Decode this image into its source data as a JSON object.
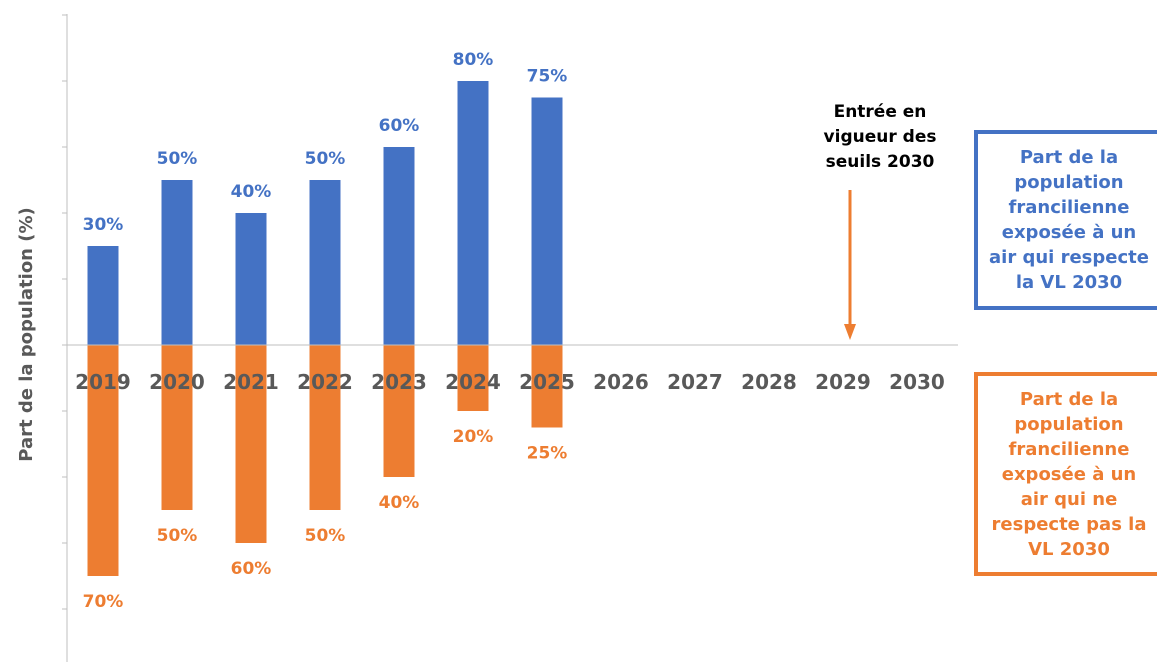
{
  "colors": {
    "blue": "#4472C4",
    "orange": "#ED7D31",
    "axis_text": "#595959",
    "axis_line": "#BFBFBF",
    "annotation": "#000000"
  },
  "chart_data": {
    "type": "bar",
    "ylabel": "Part de la population (%)",
    "xlabel": "",
    "categories": [
      "2019",
      "2020",
      "2021",
      "2022",
      "2023",
      "2024",
      "2025",
      "2026",
      "2027",
      "2028",
      "2029",
      "2030"
    ],
    "series": [
      {
        "name": "Part de la population francilienne exposée à un air qui respecte la VL 2030",
        "direction": "up",
        "color": "blue",
        "values": [
          30,
          50,
          40,
          50,
          60,
          80,
          75,
          null,
          null,
          null,
          null,
          null
        ],
        "labels": [
          "30%",
          "50%",
          "40%",
          "50%",
          "60%",
          "80%",
          "75%",
          "",
          "",
          "",
          "",
          ""
        ]
      },
      {
        "name": "Part de la population francilienne exposée à un air qui ne respecte pas la VL 2030",
        "direction": "down",
        "color": "orange",
        "values": [
          70,
          50,
          60,
          50,
          40,
          20,
          25,
          null,
          null,
          null,
          null,
          null
        ],
        "labels": [
          "70%",
          "50%",
          "60%",
          "50%",
          "40%",
          "20%",
          "25%",
          "",
          "",
          "",
          "",
          ""
        ]
      }
    ],
    "ylim": [
      -90,
      100
    ],
    "grid": false,
    "legend_placement": "right",
    "annotation": {
      "lines": [
        "Entrée en",
        "vigueur des",
        "seuils 2030"
      ],
      "target_category": "2029"
    }
  },
  "legend": {
    "blue_lines": [
      "Part de la",
      "population",
      "francilienne",
      "exposée à un",
      "air qui respecte",
      "la VL 2030"
    ],
    "orange_lines": [
      "Part de la",
      "population",
      "francilienne",
      "exposée à un",
      "air qui ne",
      "respecte pas la",
      "VL 2030"
    ]
  }
}
